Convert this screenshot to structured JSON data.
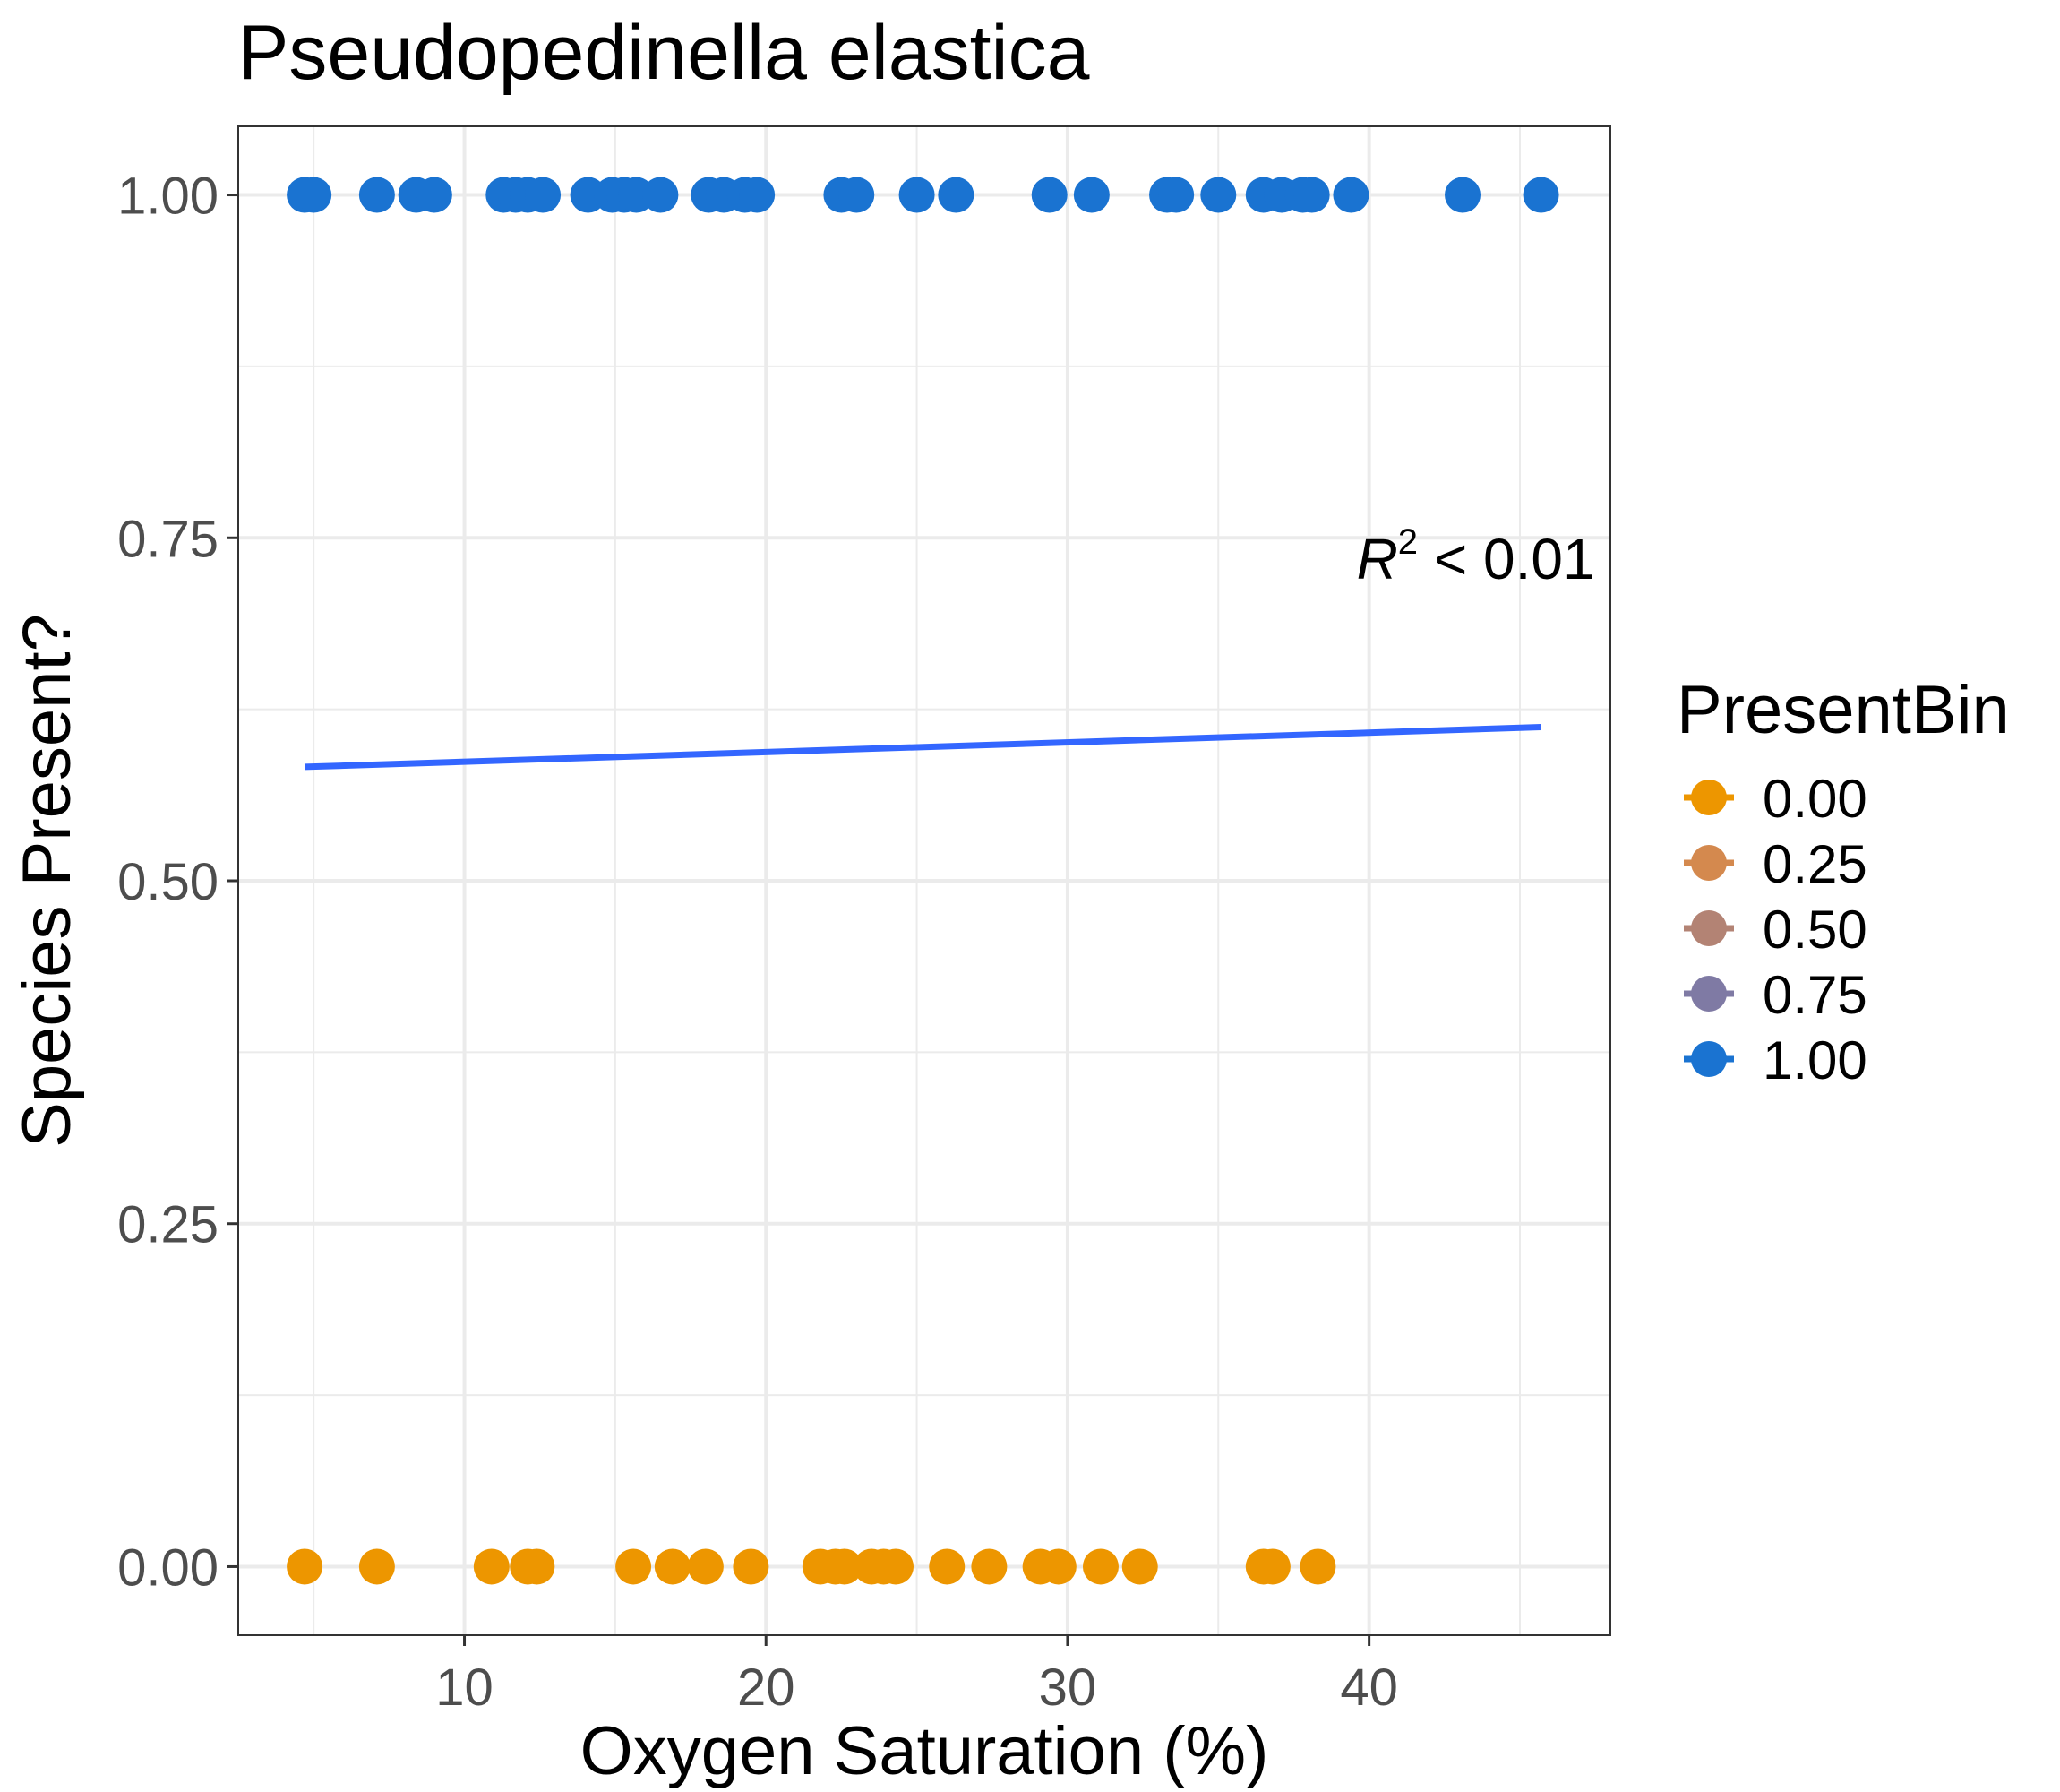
{
  "chart_data": {
    "type": "scatter",
    "title": "Pseudopedinella elastica",
    "xlabel": "Oxygen Saturation (%)",
    "ylabel": "Species Present?",
    "xlim": [
      2.5,
      48.0
    ],
    "ylim": [
      -0.05,
      1.05
    ],
    "x_ticks": [
      10,
      20,
      30,
      40
    ],
    "x_tick_labels": [
      "10",
      "20",
      "30",
      "40"
    ],
    "x_minor_ticks": [
      5,
      15,
      25,
      35,
      45
    ],
    "y_ticks": [
      0.0,
      0.25,
      0.5,
      0.75,
      1.0
    ],
    "y_tick_labels": [
      "0.00",
      "0.25",
      "0.50",
      "0.75",
      "1.00"
    ],
    "y_minor_ticks": [
      0.125,
      0.375,
      0.625,
      0.875
    ],
    "grid": true,
    "legend": {
      "title": "PresentBin",
      "position": "right",
      "entries": [
        {
          "label": "0.00",
          "color": "#ED9600"
        },
        {
          "label": "0.25",
          "color": "#D4894E"
        },
        {
          "label": "0.50",
          "color": "#B38374"
        },
        {
          "label": "0.75",
          "color": "#7F7AA4"
        },
        {
          "label": "1.00",
          "color": "#1A73D1"
        }
      ]
    },
    "series": [
      {
        "name": "0.00",
        "color": "#ED9600",
        "y": 0.0,
        "x": [
          4.7,
          7.1,
          10.9,
          12.1,
          12.4,
          15.6,
          16.9,
          18.0,
          19.5,
          21.8,
          22.3,
          22.6,
          23.5,
          23.9,
          24.3,
          26.0,
          27.4,
          29.1,
          29.7,
          31.1,
          32.4,
          36.5,
          36.8,
          38.3
        ]
      },
      {
        "name": "1.00",
        "color": "#1A73D1",
        "y": 1.0,
        "x": [
          4.7,
          5.0,
          7.1,
          8.4,
          9.0,
          11.3,
          11.7,
          12.1,
          12.6,
          14.1,
          14.9,
          15.3,
          15.7,
          16.5,
          18.1,
          18.6,
          19.3,
          19.7,
          22.5,
          23.0,
          25.0,
          26.3,
          29.4,
          30.8,
          33.3,
          33.6,
          35.0,
          36.5,
          37.1,
          37.8,
          38.1,
          39.4,
          43.1,
          45.7
        ]
      }
    ],
    "fit_line": {
      "color": "#3366FF",
      "x": [
        4.7,
        45.7
      ],
      "y": [
        0.583,
        0.612
      ]
    },
    "annotation": {
      "r": "R",
      "sup": "2",
      "rest": " < 0.01",
      "x": 45.7,
      "y": 0.72
    }
  }
}
